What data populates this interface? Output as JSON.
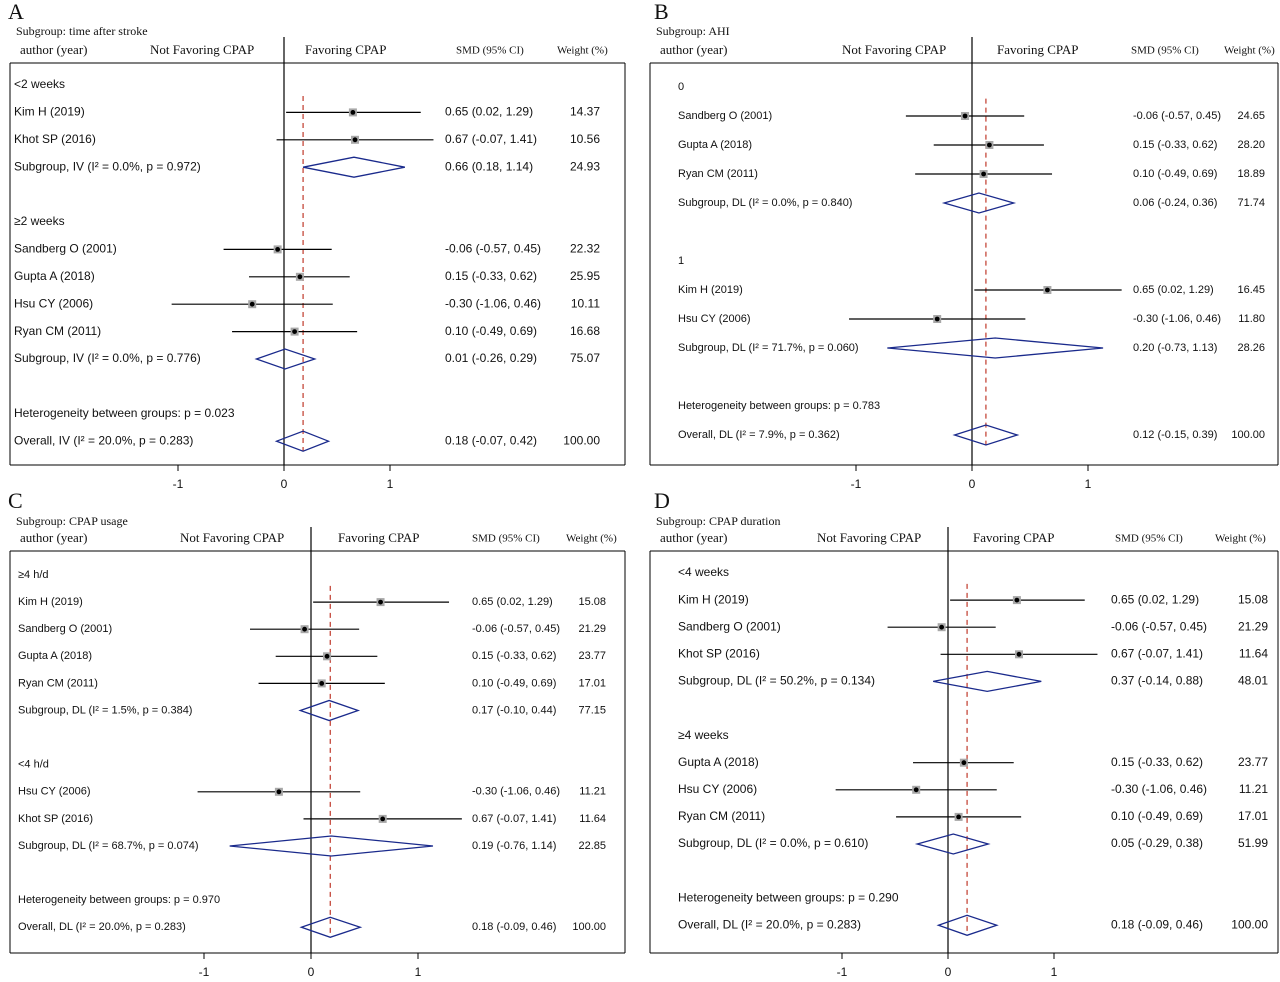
{
  "colors": {
    "diamond": "#1a2a8c",
    "ref_line": "#c0392b",
    "axis": "#000000",
    "text": "#111111"
  },
  "panels": [
    {
      "letter": "A",
      "subgroup_title": "Subgroup: time after stroke",
      "header": {
        "author": "author (year)",
        "left": "Not Favoring CPAP",
        "right": "Favoring CPAP",
        "smd": "SMD (95% CI)",
        "weight": "Weight (%)"
      },
      "ticks": [
        "-1",
        "0",
        "1"
      ],
      "rows": [
        {
          "type": "group",
          "label": "<2 weeks"
        },
        {
          "type": "study",
          "label": "Kim H (2019)",
          "est": 0.65,
          "lo": 0.02,
          "hi": 1.29,
          "ci": "0.65 (0.02, 1.29)",
          "weight": "14.37"
        },
        {
          "type": "study",
          "label": "Khot SP (2016)",
          "est": 0.67,
          "lo": -0.07,
          "hi": 1.41,
          "ci": "0.67 (-0.07, 1.41)",
          "weight": "10.56"
        },
        {
          "type": "sub",
          "label": "Subgroup, IV (I² = 0.0%, p = 0.972)",
          "est": 0.66,
          "lo": 0.18,
          "hi": 1.14,
          "ci": "0.66 (0.18, 1.14)",
          "weight": "24.93"
        },
        {
          "type": "blank"
        },
        {
          "type": "group",
          "label": "≥2 weeks"
        },
        {
          "type": "study",
          "label": "Sandberg O (2001)",
          "est": -0.06,
          "lo": -0.57,
          "hi": 0.45,
          "ci": "-0.06 (-0.57, 0.45)",
          "weight": "22.32"
        },
        {
          "type": "study",
          "label": "Gupta A (2018)",
          "est": 0.15,
          "lo": -0.33,
          "hi": 0.62,
          "ci": "0.15 (-0.33, 0.62)",
          "weight": "25.95"
        },
        {
          "type": "study",
          "label": "Hsu CY (2006)",
          "est": -0.3,
          "lo": -1.06,
          "hi": 0.46,
          "ci": "-0.30 (-1.06, 0.46)",
          "weight": "10.11"
        },
        {
          "type": "study",
          "label": "Ryan CM (2011)",
          "est": 0.1,
          "lo": -0.49,
          "hi": 0.69,
          "ci": "0.10 (-0.49, 0.69)",
          "weight": "16.68"
        },
        {
          "type": "sub",
          "label": "Subgroup, IV (I² = 0.0%, p = 0.776)",
          "est": 0.01,
          "lo": -0.26,
          "hi": 0.29,
          "ci": "0.01 (-0.26, 0.29)",
          "weight": "75.07"
        },
        {
          "type": "blank"
        },
        {
          "type": "text",
          "label": "Heterogeneity between groups: p = 0.023"
        },
        {
          "type": "overall",
          "label": "Overall, IV (I² = 20.0%, p = 0.283)",
          "est": 0.18,
          "lo": -0.07,
          "hi": 0.42,
          "ci": "0.18 (-0.07, 0.42)",
          "weight": "100.00"
        }
      ]
    },
    {
      "letter": "B",
      "subgroup_title": "Subgroup: AHI",
      "header": {
        "author": "author (year)",
        "left": "Not Favoring CPAP",
        "right": "Favoring CPAP",
        "smd": "SMD (95% CI)",
        "weight": "Weight (%)"
      },
      "ticks": [
        "-1",
        "0",
        "1"
      ],
      "rows": [
        {
          "type": "group",
          "label": "0"
        },
        {
          "type": "study",
          "label": "Sandberg O (2001)",
          "est": -0.06,
          "lo": -0.57,
          "hi": 0.45,
          "ci": "-0.06 (-0.57, 0.45)",
          "weight": "24.65"
        },
        {
          "type": "study",
          "label": "Gupta A (2018)",
          "est": 0.15,
          "lo": -0.33,
          "hi": 0.62,
          "ci": "0.15 (-0.33, 0.62)",
          "weight": "28.20"
        },
        {
          "type": "study",
          "label": "Ryan CM (2011)",
          "est": 0.1,
          "lo": -0.49,
          "hi": 0.69,
          "ci": "0.10 (-0.49, 0.69)",
          "weight": "18.89"
        },
        {
          "type": "sub",
          "label": "Subgroup, DL (I² = 0.0%, p = 0.840)",
          "est": 0.06,
          "lo": -0.24,
          "hi": 0.36,
          "ci": "0.06 (-0.24, 0.36)",
          "weight": "71.74"
        },
        {
          "type": "blank"
        },
        {
          "type": "group",
          "label": "1"
        },
        {
          "type": "study",
          "label": "Kim H (2019)",
          "est": 0.65,
          "lo": 0.02,
          "hi": 1.29,
          "ci": "0.65 (0.02, 1.29)",
          "weight": "16.45"
        },
        {
          "type": "study",
          "label": "Hsu CY (2006)",
          "est": -0.3,
          "lo": -1.06,
          "hi": 0.46,
          "ci": "-0.30 (-1.06, 0.46)",
          "weight": "11.80"
        },
        {
          "type": "sub",
          "label": "Subgroup, DL (I² = 71.7%, p = 0.060)",
          "est": 0.2,
          "lo": -0.73,
          "hi": 1.13,
          "ci": "0.20 (-0.73, 1.13)",
          "weight": "28.26"
        },
        {
          "type": "blank"
        },
        {
          "type": "text",
          "label": "Heterogeneity between groups: p = 0.783"
        },
        {
          "type": "overall",
          "label": "Overall, DL (I² = 7.9%, p = 0.362)",
          "est": 0.12,
          "lo": -0.15,
          "hi": 0.39,
          "ci": "0.12 (-0.15, 0.39)",
          "weight": "100.00"
        }
      ]
    },
    {
      "letter": "C",
      "subgroup_title": "Subgroup: CPAP usage",
      "header": {
        "author": "author (year)",
        "left": "Not Favoring CPAP",
        "right": "Favoring CPAP",
        "smd": "SMD (95% CI)",
        "weight": "Weight (%)"
      },
      "ticks": [
        "-1",
        "0",
        "1"
      ],
      "rows": [
        {
          "type": "group",
          "label": "≥4 h/d"
        },
        {
          "type": "study",
          "label": "Kim H (2019)",
          "est": 0.65,
          "lo": 0.02,
          "hi": 1.29,
          "ci": "0.65 (0.02, 1.29)",
          "weight": "15.08"
        },
        {
          "type": "study",
          "label": "Sandberg O (2001)",
          "est": -0.06,
          "lo": -0.57,
          "hi": 0.45,
          "ci": "-0.06 (-0.57, 0.45)",
          "weight": "21.29"
        },
        {
          "type": "study",
          "label": "Gupta A (2018)",
          "est": 0.15,
          "lo": -0.33,
          "hi": 0.62,
          "ci": "0.15 (-0.33, 0.62)",
          "weight": "23.77"
        },
        {
          "type": "study",
          "label": "Ryan CM (2011)",
          "est": 0.1,
          "lo": -0.49,
          "hi": 0.69,
          "ci": "0.10 (-0.49, 0.69)",
          "weight": "17.01"
        },
        {
          "type": "sub",
          "label": "Subgroup, DL (I² = 1.5%, p = 0.384)",
          "est": 0.17,
          "lo": -0.1,
          "hi": 0.44,
          "ci": "0.17 (-0.10, 0.44)",
          "weight": "77.15"
        },
        {
          "type": "blank"
        },
        {
          "type": "group",
          "label": "<4 h/d"
        },
        {
          "type": "study",
          "label": "Hsu CY (2006)",
          "est": -0.3,
          "lo": -1.06,
          "hi": 0.46,
          "ci": "-0.30 (-1.06, 0.46)",
          "weight": "11.21"
        },
        {
          "type": "study",
          "label": "Khot SP (2016)",
          "est": 0.67,
          "lo": -0.07,
          "hi": 1.41,
          "ci": "0.67 (-0.07, 1.41)",
          "weight": "11.64"
        },
        {
          "type": "sub",
          "label": "Subgroup, DL (I² = 68.7%, p = 0.074)",
          "est": 0.19,
          "lo": -0.76,
          "hi": 1.14,
          "ci": "0.19 (-0.76, 1.14)",
          "weight": "22.85"
        },
        {
          "type": "blank"
        },
        {
          "type": "text",
          "label": "Heterogeneity between groups: p = 0.970"
        },
        {
          "type": "overall",
          "label": "Overall, DL (I² = 20.0%, p = 0.283)",
          "est": 0.18,
          "lo": -0.09,
          "hi": 0.46,
          "ci": "0.18 (-0.09, 0.46)",
          "weight": "100.00"
        }
      ]
    },
    {
      "letter": "D",
      "subgroup_title": "Subgroup: CPAP duration",
      "header": {
        "author": "author (year)",
        "left": "Not Favoring CPAP",
        "right": "Favoring CPAP",
        "smd": "SMD (95% CI)",
        "weight": "Weight (%)"
      },
      "ticks": [
        "-1",
        "0",
        "1"
      ],
      "rows": [
        {
          "type": "group",
          "label": "<4 weeks"
        },
        {
          "type": "study",
          "label": "Kim H (2019)",
          "est": 0.65,
          "lo": 0.02,
          "hi": 1.29,
          "ci": "0.65 (0.02, 1.29)",
          "weight": "15.08"
        },
        {
          "type": "study",
          "label": "Sandberg O (2001)",
          "est": -0.06,
          "lo": -0.57,
          "hi": 0.45,
          "ci": "-0.06 (-0.57, 0.45)",
          "weight": "21.29"
        },
        {
          "type": "study",
          "label": "Khot SP (2016)",
          "est": 0.67,
          "lo": -0.07,
          "hi": 1.41,
          "ci": "0.67 (-0.07, 1.41)",
          "weight": "11.64"
        },
        {
          "type": "sub",
          "label": "Subgroup, DL (I² = 50.2%, p = 0.134)",
          "est": 0.37,
          "lo": -0.14,
          "hi": 0.88,
          "ci": "0.37 (-0.14, 0.88)",
          "weight": "48.01"
        },
        {
          "type": "blank"
        },
        {
          "type": "group",
          "label": "≥4 weeks"
        },
        {
          "type": "study",
          "label": "Gupta A (2018)",
          "est": 0.15,
          "lo": -0.33,
          "hi": 0.62,
          "ci": "0.15 (-0.33, 0.62)",
          "weight": "23.77"
        },
        {
          "type": "study",
          "label": "Hsu CY (2006)",
          "est": -0.3,
          "lo": -1.06,
          "hi": 0.46,
          "ci": "-0.30 (-1.06, 0.46)",
          "weight": "11.21"
        },
        {
          "type": "study",
          "label": "Ryan CM (2011)",
          "est": 0.1,
          "lo": -0.49,
          "hi": 0.69,
          "ci": "0.10 (-0.49, 0.69)",
          "weight": "17.01"
        },
        {
          "type": "sub",
          "label": "Subgroup, DL (I² = 0.0%, p = 0.610)",
          "est": 0.05,
          "lo": -0.29,
          "hi": 0.38,
          "ci": "0.05 (-0.29, 0.38)",
          "weight": "51.99"
        },
        {
          "type": "blank"
        },
        {
          "type": "text",
          "label": "Heterogeneity between groups: p = 0.290"
        },
        {
          "type": "overall",
          "label": "Overall, DL (I² = 20.0%, p = 0.283)",
          "est": 0.18,
          "lo": -0.09,
          "hi": 0.46,
          "ci": "0.18 (-0.09, 0.46)",
          "weight": "100.00"
        }
      ]
    }
  ],
  "chart_data": [
    {
      "type": "forest",
      "panel": "A",
      "title": "Subgroup: time after stroke",
      "x_ticks": [
        -1,
        0,
        1
      ],
      "reference_line": 0,
      "overall_line": 0.18,
      "groups": [
        {
          "name": "<2 weeks",
          "studies": [
            {
              "study": "Kim H (2019)",
              "smd": 0.65,
              "ci": [
                0.02,
                1.29
              ],
              "weight": 14.37
            },
            {
              "study": "Khot SP (2016)",
              "smd": 0.67,
              "ci": [
                -0.07,
                1.41
              ],
              "weight": 10.56
            }
          ],
          "pooled": {
            "smd": 0.66,
            "ci": [
              0.18,
              1.14
            ],
            "weight": 24.93,
            "i2": 0.0,
            "p": 0.972
          }
        },
        {
          "name": "≥2 weeks",
          "studies": [
            {
              "study": "Sandberg O (2001)",
              "smd": -0.06,
              "ci": [
                -0.57,
                0.45
              ],
              "weight": 22.32
            },
            {
              "study": "Gupta A (2018)",
              "smd": 0.15,
              "ci": [
                -0.33,
                0.62
              ],
              "weight": 25.95
            },
            {
              "study": "Hsu CY (2006)",
              "smd": -0.3,
              "ci": [
                -1.06,
                0.46
              ],
              "weight": 10.11
            },
            {
              "study": "Ryan CM (2011)",
              "smd": 0.1,
              "ci": [
                -0.49,
                0.69
              ],
              "weight": 16.68
            }
          ],
          "pooled": {
            "smd": 0.01,
            "ci": [
              -0.26,
              0.29
            ],
            "weight": 75.07,
            "i2": 0.0,
            "p": 0.776
          }
        }
      ],
      "heterogeneity_p": 0.023,
      "overall": {
        "smd": 0.18,
        "ci": [
          -0.07,
          0.42
        ],
        "weight": 100.0,
        "i2": 20.0,
        "p": 0.283
      }
    },
    {
      "type": "forest",
      "panel": "B",
      "title": "Subgroup: AHI",
      "x_ticks": [
        -1,
        0,
        1
      ],
      "reference_line": 0,
      "overall_line": 0.12,
      "groups": [
        {
          "name": "0",
          "studies": [
            {
              "study": "Sandberg O (2001)",
              "smd": -0.06,
              "ci": [
                -0.57,
                0.45
              ],
              "weight": 24.65
            },
            {
              "study": "Gupta A (2018)",
              "smd": 0.15,
              "ci": [
                -0.33,
                0.62
              ],
              "weight": 28.2
            },
            {
              "study": "Ryan CM (2011)",
              "smd": 0.1,
              "ci": [
                -0.49,
                0.69
              ],
              "weight": 18.89
            }
          ],
          "pooled": {
            "smd": 0.06,
            "ci": [
              -0.24,
              0.36
            ],
            "weight": 71.74,
            "i2": 0.0,
            "p": 0.84
          }
        },
        {
          "name": "1",
          "studies": [
            {
              "study": "Kim H (2019)",
              "smd": 0.65,
              "ci": [
                0.02,
                1.29
              ],
              "weight": 16.45
            },
            {
              "study": "Hsu CY (2006)",
              "smd": -0.3,
              "ci": [
                -1.06,
                0.46
              ],
              "weight": 11.8
            }
          ],
          "pooled": {
            "smd": 0.2,
            "ci": [
              -0.73,
              1.13
            ],
            "weight": 28.26,
            "i2": 71.7,
            "p": 0.06
          }
        }
      ],
      "heterogeneity_p": 0.783,
      "overall": {
        "smd": 0.12,
        "ci": [
          -0.15,
          0.39
        ],
        "weight": 100.0,
        "i2": 7.9,
        "p": 0.362
      }
    },
    {
      "type": "forest",
      "panel": "C",
      "title": "Subgroup: CPAP usage",
      "x_ticks": [
        -1,
        0,
        1
      ],
      "reference_line": 0,
      "overall_line": 0.18,
      "groups": [
        {
          "name": "≥4 h/d",
          "studies": [
            {
              "study": "Kim H (2019)",
              "smd": 0.65,
              "ci": [
                0.02,
                1.29
              ],
              "weight": 15.08
            },
            {
              "study": "Sandberg O (2001)",
              "smd": -0.06,
              "ci": [
                -0.57,
                0.45
              ],
              "weight": 21.29
            },
            {
              "study": "Gupta A (2018)",
              "smd": 0.15,
              "ci": [
                -0.33,
                0.62
              ],
              "weight": 23.77
            },
            {
              "study": "Ryan CM (2011)",
              "smd": 0.1,
              "ci": [
                -0.49,
                0.69
              ],
              "weight": 17.01
            }
          ],
          "pooled": {
            "smd": 0.17,
            "ci": [
              -0.1,
              0.44
            ],
            "weight": 77.15,
            "i2": 1.5,
            "p": 0.384
          }
        },
        {
          "name": "<4 h/d",
          "studies": [
            {
              "study": "Hsu CY (2006)",
              "smd": -0.3,
              "ci": [
                -1.06,
                0.46
              ],
              "weight": 11.21
            },
            {
              "study": "Khot SP (2016)",
              "smd": 0.67,
              "ci": [
                -0.07,
                1.41
              ],
              "weight": 11.64
            }
          ],
          "pooled": {
            "smd": 0.19,
            "ci": [
              -0.76,
              1.14
            ],
            "weight": 22.85,
            "i2": 68.7,
            "p": 0.074
          }
        }
      ],
      "heterogeneity_p": 0.97,
      "overall": {
        "smd": 0.18,
        "ci": [
          -0.09,
          0.46
        ],
        "weight": 100.0,
        "i2": 20.0,
        "p": 0.283
      }
    },
    {
      "type": "forest",
      "panel": "D",
      "title": "Subgroup: CPAP duration",
      "x_ticks": [
        -1,
        0,
        1
      ],
      "reference_line": 0,
      "overall_line": 0.18,
      "groups": [
        {
          "name": "<4 weeks",
          "studies": [
            {
              "study": "Kim H (2019)",
              "smd": 0.65,
              "ci": [
                0.02,
                1.29
              ],
              "weight": 15.08
            },
            {
              "study": "Sandberg O (2001)",
              "smd": -0.06,
              "ci": [
                -0.57,
                0.45
              ],
              "weight": 21.29
            },
            {
              "study": "Khot SP (2016)",
              "smd": 0.67,
              "ci": [
                -0.07,
                1.41
              ],
              "weight": 11.64
            }
          ],
          "pooled": {
            "smd": 0.37,
            "ci": [
              -0.14,
              0.88
            ],
            "weight": 48.01,
            "i2": 50.2,
            "p": 0.134
          }
        },
        {
          "name": "≥4 weeks",
          "studies": [
            {
              "study": "Gupta A (2018)",
              "smd": 0.15,
              "ci": [
                -0.33,
                0.62
              ],
              "weight": 23.77
            },
            {
              "study": "Hsu CY (2006)",
              "smd": -0.3,
              "ci": [
                -1.06,
                0.46
              ],
              "weight": 11.21
            },
            {
              "study": "Ryan CM (2011)",
              "smd": 0.1,
              "ci": [
                -0.49,
                0.69
              ],
              "weight": 17.01
            }
          ],
          "pooled": {
            "smd": 0.05,
            "ci": [
              -0.29,
              0.38
            ],
            "weight": 51.99,
            "i2": 0.0,
            "p": 0.61
          }
        }
      ],
      "heterogeneity_p": 0.29,
      "overall": {
        "smd": 0.18,
        "ci": [
          -0.09,
          0.46
        ],
        "weight": 100.0,
        "i2": 20.0,
        "p": 0.283
      }
    }
  ]
}
